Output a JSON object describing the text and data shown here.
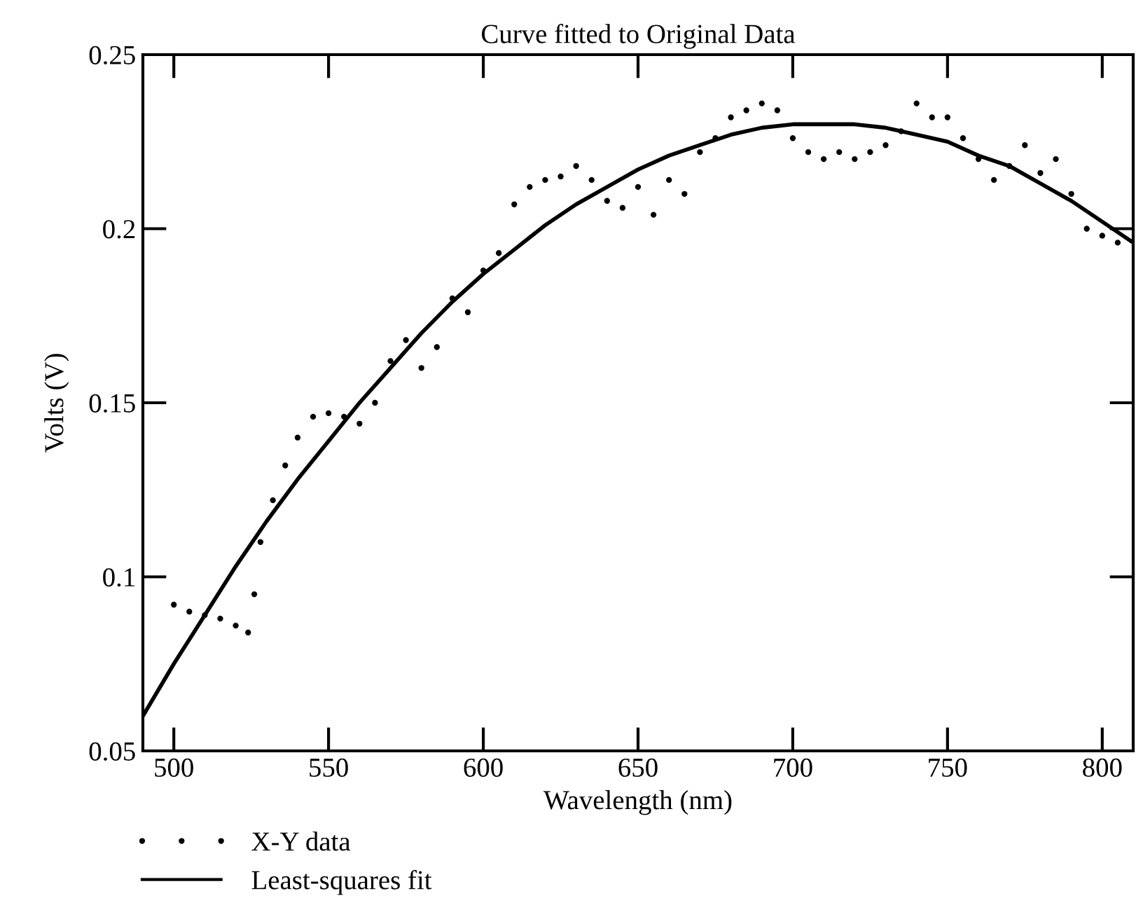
{
  "chart_data": {
    "type": "scatter",
    "title": "Curve fitted to Original Data",
    "xlabel": "Wavelength (nm)",
    "ylabel": "Volts (V)",
    "xlim": [
      490,
      810
    ],
    "xticks": [
      500,
      550,
      600,
      650,
      700,
      750,
      800
    ],
    "ylim": [
      0.05,
      0.25
    ],
    "yticks": [
      0.05,
      0.1,
      0.15,
      0.2,
      0.25
    ],
    "grid": false,
    "legend": "bottom left",
    "series": [
      {
        "name": "X-Y data",
        "marker": "circle",
        "color": "#000000",
        "x": [
          500,
          505,
          510,
          515,
          520,
          524,
          526,
          528,
          532,
          536,
          540,
          545,
          550,
          555,
          560,
          565,
          570,
          575,
          580,
          585,
          590,
          595,
          600,
          605,
          610,
          615,
          620,
          625,
          630,
          635,
          640,
          645,
          650,
          655,
          660,
          665,
          670,
          675,
          680,
          685,
          690,
          695,
          700,
          705,
          710,
          715,
          720,
          725,
          730,
          735,
          740,
          745,
          750,
          755,
          760,
          765,
          770,
          775,
          780,
          785,
          790,
          795,
          800,
          805
        ],
        "values": [
          0.092,
          0.09,
          0.089,
          0.088,
          0.086,
          0.084,
          0.095,
          0.11,
          0.122,
          0.132,
          0.14,
          0.146,
          0.147,
          0.146,
          0.144,
          0.15,
          0.162,
          0.168,
          0.16,
          0.166,
          0.18,
          0.176,
          0.188,
          0.193,
          0.207,
          0.212,
          0.214,
          0.215,
          0.218,
          0.214,
          0.208,
          0.206,
          0.212,
          0.204,
          0.214,
          0.21,
          0.222,
          0.226,
          0.232,
          0.234,
          0.236,
          0.234,
          0.226,
          0.222,
          0.22,
          0.222,
          0.22,
          0.222,
          0.224,
          0.228,
          0.236,
          0.232,
          0.232,
          0.226,
          0.22,
          0.214,
          0.218,
          0.224,
          0.216,
          0.22,
          0.21,
          0.2,
          0.198,
          0.196
        ]
      },
      {
        "name": "Least-squares fit",
        "type": "line",
        "marker": "none",
        "line_style": "solid",
        "color": "#000000",
        "x": [
          490,
          500,
          510,
          520,
          530,
          540,
          550,
          560,
          570,
          580,
          590,
          600,
          610,
          620,
          630,
          640,
          650,
          660,
          670,
          680,
          690,
          700,
          710,
          720,
          730,
          740,
          750,
          760,
          770,
          780,
          790,
          800,
          810
        ],
        "values": [
          0.06,
          0.075,
          0.089,
          0.103,
          0.116,
          0.128,
          0.139,
          0.15,
          0.16,
          0.17,
          0.179,
          0.187,
          0.194,
          0.201,
          0.207,
          0.212,
          0.217,
          0.221,
          0.224,
          0.227,
          0.229,
          0.23,
          0.23,
          0.23,
          0.229,
          0.227,
          0.225,
          0.221,
          0.218,
          0.213,
          0.208,
          0.202,
          0.196
        ]
      }
    ]
  }
}
